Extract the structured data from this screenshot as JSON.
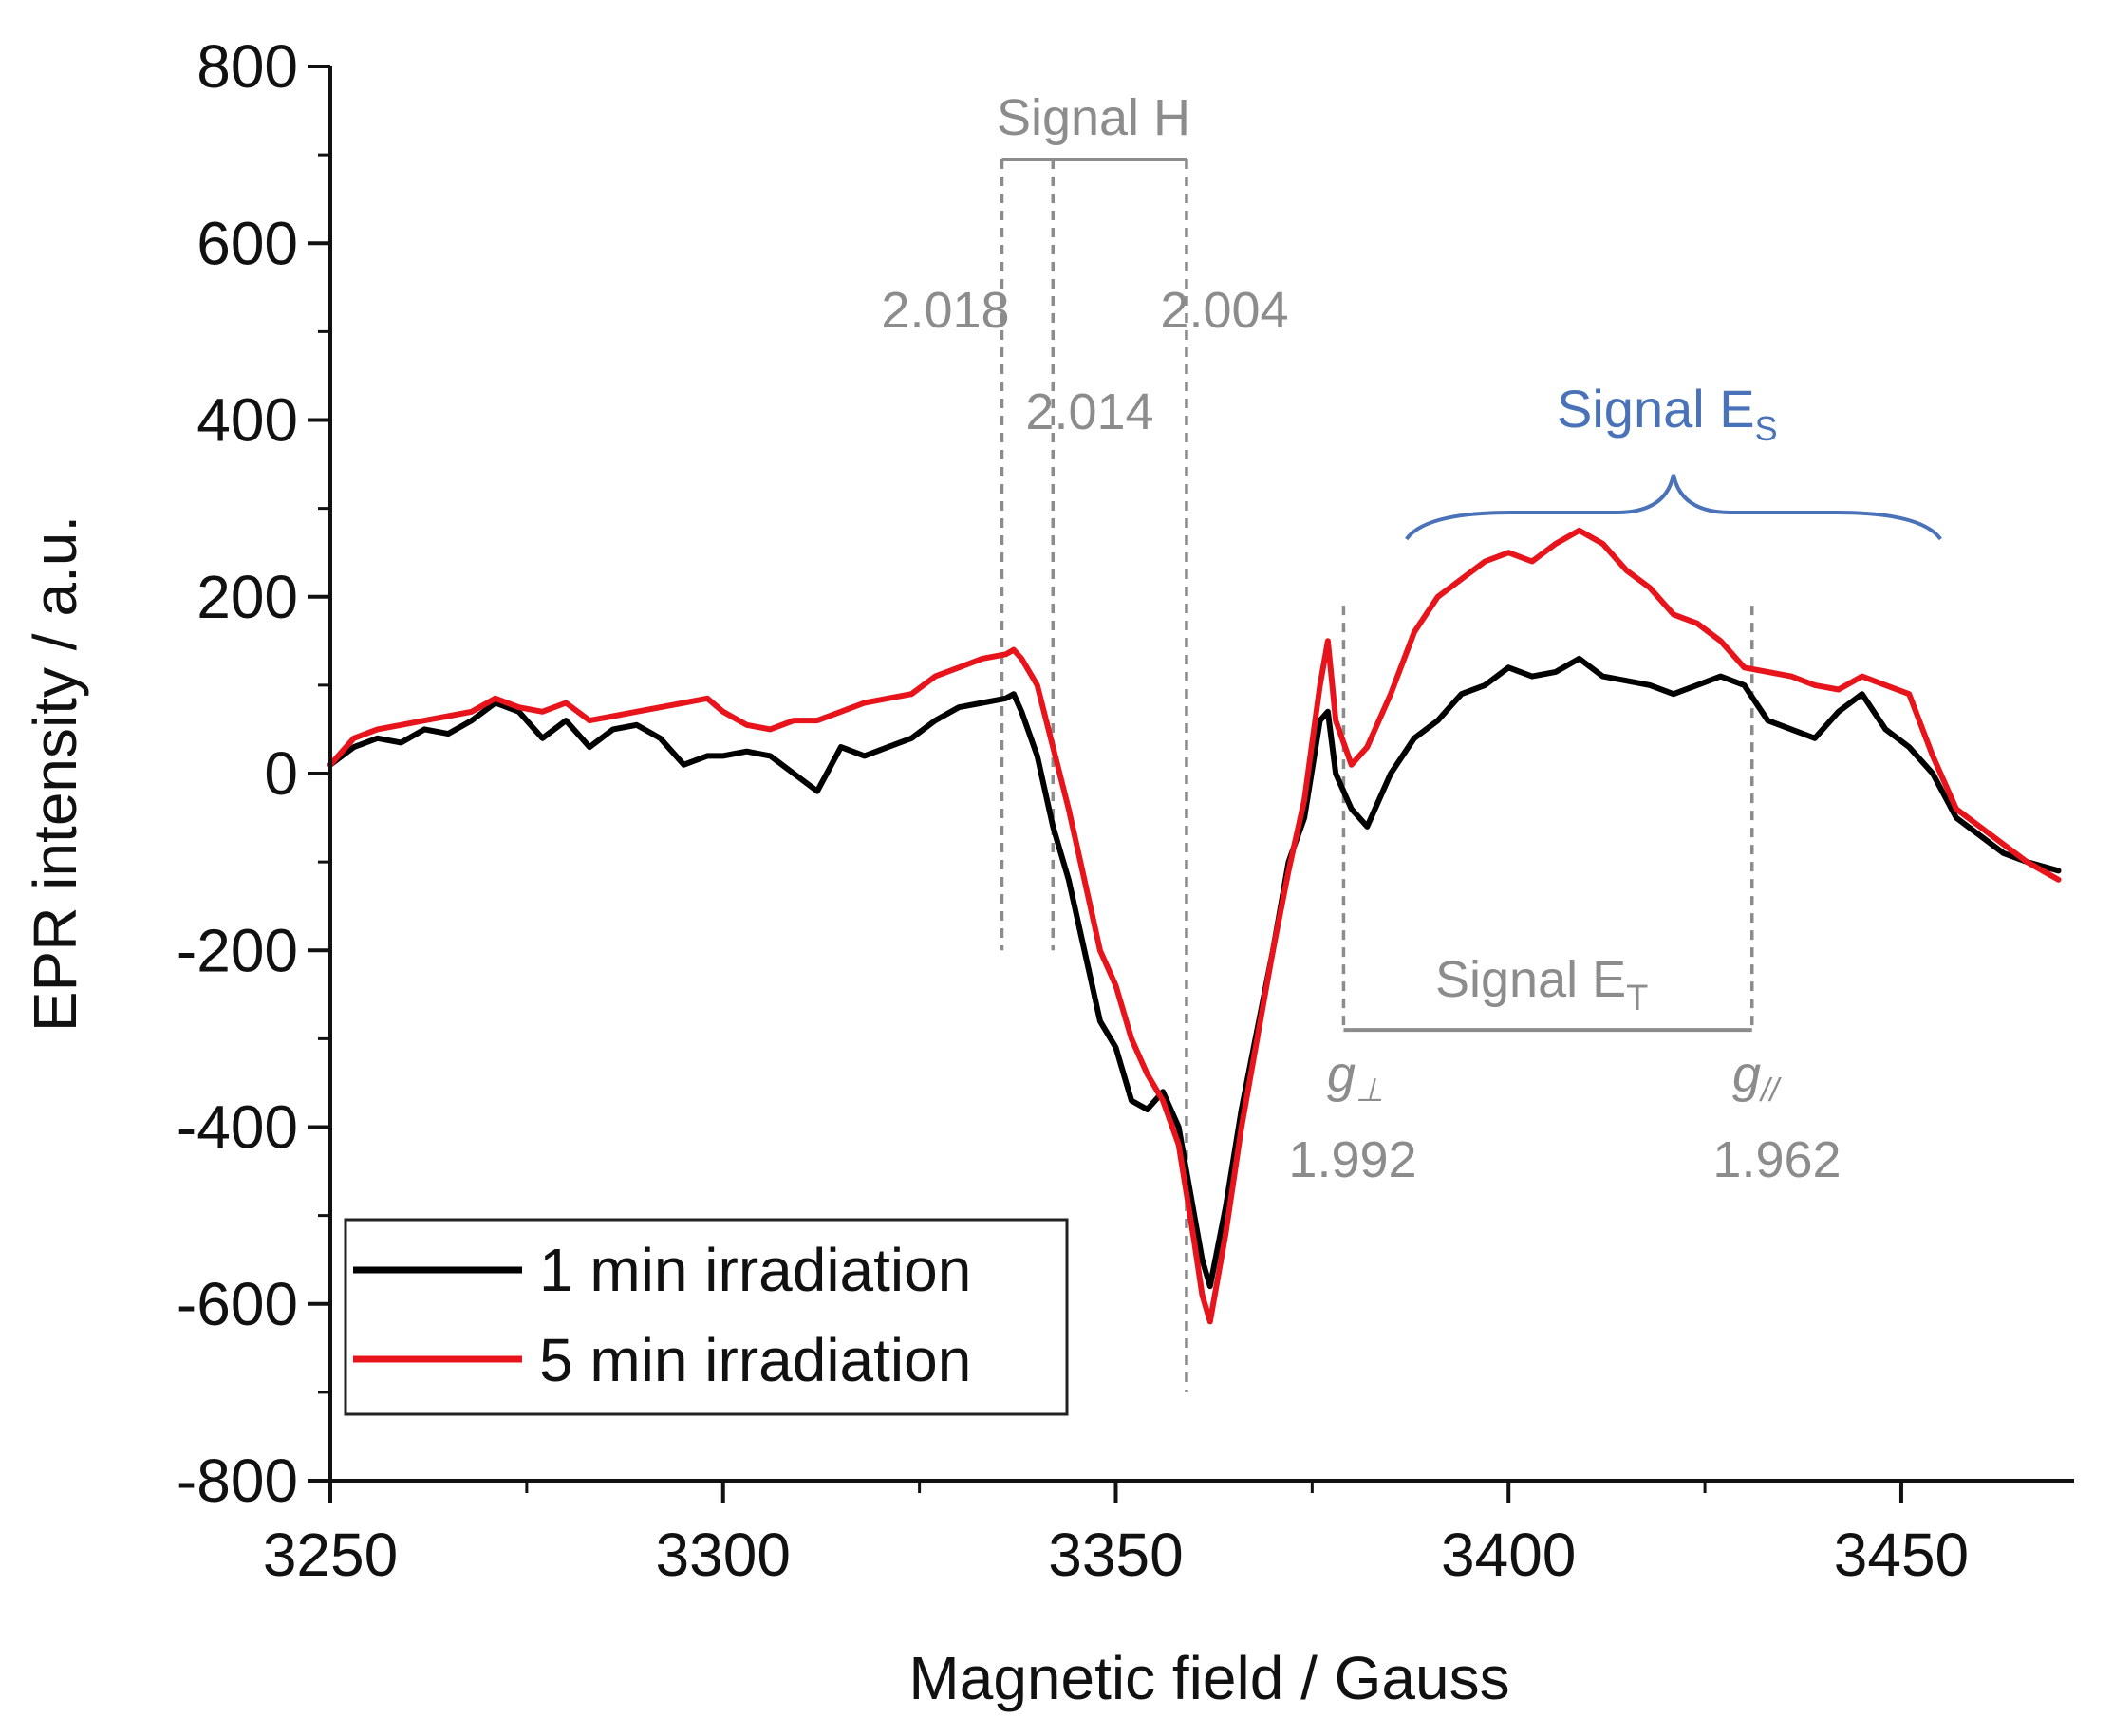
{
  "chart_data": {
    "type": "line",
    "xlabel": "Magnetic field / Gauss",
    "ylabel": "EPR intensity / a.u.",
    "xlim": [
      3250,
      3472
    ],
    "ylim": [
      -800,
      800
    ],
    "x_ticks": [
      3250,
      3300,
      3350,
      3400,
      3450
    ],
    "x_tick_labels": [
      "3250",
      "3300",
      "3350",
      "3400",
      "3450"
    ],
    "y_ticks": [
      800,
      600,
      400,
      200,
      0,
      -200,
      -400,
      -600,
      -800
    ],
    "y_tick_labels": [
      "800",
      "600",
      "400",
      "200",
      "0",
      "-200",
      "-400",
      "-600",
      "-800"
    ],
    "legend_position": "bottom-left",
    "series": [
      {
        "name": "1 min irradiation",
        "color": "#000000",
        "x": [
          3250,
          3253,
          3256,
          3259,
          3262,
          3265,
          3268,
          3271,
          3274,
          3277,
          3280,
          3283,
          3286,
          3289,
          3292,
          3295,
          3298,
          3300,
          3303,
          3306,
          3309,
          3312,
          3315,
          3318,
          3321,
          3324,
          3327,
          3330,
          3333,
          3336,
          3337,
          3338,
          3340,
          3342,
          3344,
          3346,
          3348,
          3350,
          3352,
          3354,
          3356,
          3358,
          3360,
          3361,
          3362,
          3364,
          3366,
          3368,
          3370,
          3372,
          3374,
          3376,
          3377,
          3378,
          3380,
          3382,
          3385,
          3388,
          3391,
          3394,
          3397,
          3400,
          3403,
          3406,
          3409,
          3412,
          3415,
          3418,
          3421,
          3424,
          3427,
          3430,
          3433,
          3436,
          3439,
          3442,
          3445,
          3448,
          3451,
          3454,
          3457,
          3460,
          3463,
          3466,
          3470
        ],
        "y": [
          10,
          30,
          40,
          35,
          50,
          45,
          60,
          80,
          70,
          40,
          60,
          30,
          50,
          55,
          40,
          10,
          20,
          20,
          25,
          20,
          0,
          -20,
          30,
          20,
          30,
          40,
          60,
          75,
          80,
          85,
          90,
          70,
          20,
          -60,
          -120,
          -200,
          -280,
          -310,
          -370,
          -380,
          -360,
          -400,
          -500,
          -550,
          -580,
          -490,
          -380,
          -290,
          -200,
          -100,
          -50,
          60,
          70,
          0,
          -40,
          -60,
          0,
          40,
          60,
          90,
          100,
          120,
          110,
          115,
          130,
          110,
          105,
          100,
          90,
          100,
          110,
          100,
          60,
          50,
          40,
          70,
          90,
          50,
          30,
          0,
          -50,
          -70,
          -90,
          -100,
          -110
        ]
      },
      {
        "name": "5 min irradiation",
        "color": "#e8141c",
        "x": [
          3250,
          3253,
          3256,
          3259,
          3262,
          3265,
          3268,
          3271,
          3274,
          3277,
          3280,
          3283,
          3286,
          3289,
          3292,
          3295,
          3298,
          3300,
          3303,
          3306,
          3309,
          3312,
          3315,
          3318,
          3321,
          3324,
          3327,
          3330,
          3333,
          3336,
          3337,
          3338,
          3340,
          3342,
          3344,
          3346,
          3348,
          3350,
          3352,
          3354,
          3356,
          3358,
          3360,
          3361,
          3362,
          3364,
          3366,
          3368,
          3370,
          3372,
          3374,
          3376,
          3377,
          3378,
          3380,
          3382,
          3385,
          3388,
          3391,
          3394,
          3397,
          3400,
          3403,
          3406,
          3409,
          3412,
          3415,
          3418,
          3421,
          3424,
          3427,
          3430,
          3433,
          3436,
          3439,
          3442,
          3445,
          3448,
          3451,
          3454,
          3457,
          3460,
          3463,
          3466,
          3470
        ],
        "y": [
          10,
          40,
          50,
          55,
          60,
          65,
          70,
          85,
          75,
          70,
          80,
          60,
          65,
          70,
          75,
          80,
          85,
          70,
          55,
          50,
          60,
          60,
          70,
          80,
          85,
          90,
          110,
          120,
          130,
          135,
          140,
          130,
          100,
          30,
          -40,
          -120,
          -200,
          -240,
          -300,
          -340,
          -370,
          -420,
          -530,
          -590,
          -620,
          -520,
          -400,
          -300,
          -200,
          -110,
          -30,
          100,
          150,
          60,
          10,
          30,
          90,
          160,
          200,
          220,
          240,
          250,
          240,
          260,
          275,
          260,
          230,
          210,
          180,
          170,
          150,
          120,
          115,
          110,
          100,
          95,
          110,
          100,
          90,
          20,
          -40,
          -60,
          -80,
          -100,
          -120
        ]
      }
    ],
    "annotations": {
      "signal_h": {
        "label": "Signal H",
        "g_values": [
          "2.018",
          "2.014",
          "2.004"
        ],
        "fields": [
          3335.5,
          3342,
          3359
        ]
      },
      "signal_es": {
        "label_main": "Signal E",
        "label_sub": "S",
        "bracket_from": 3387,
        "bracket_to": 3455
      },
      "signal_et": {
        "label_main": "Signal E",
        "label_sub": "T",
        "g_perp_symbol": "g",
        "g_perp_sub": "⊥",
        "g_perp_value": "1.992",
        "g_par_symbol": "g",
        "g_par_sub": "//",
        "g_par_value": "1.962",
        "fields": [
          3379,
          3431
        ]
      }
    }
  }
}
